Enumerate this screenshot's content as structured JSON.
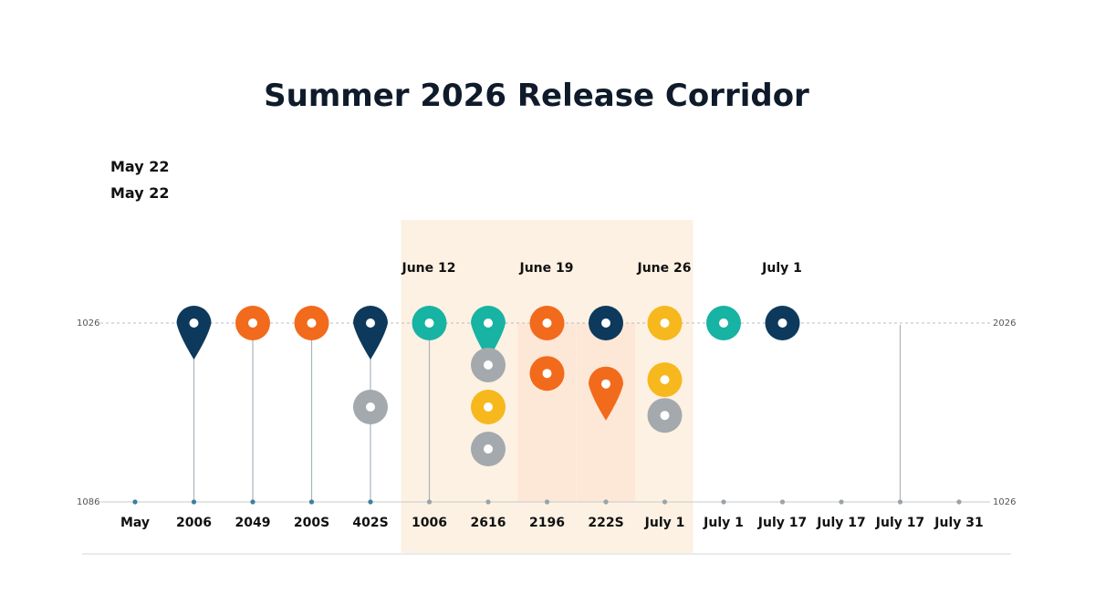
{
  "chart_data": {
    "type": "scatter",
    "title": "Summer 2026 Release Corridor",
    "notes": [
      "May 22",
      "May 22"
    ],
    "y_axis_left": {
      "top": "1026",
      "bottom": "1086"
    },
    "y_axis_right": {
      "top": "2026",
      "bottom": "1026"
    },
    "categories": [
      "May",
      "2006",
      "2049",
      "200S",
      "402S",
      "1006",
      "2616",
      "2196",
      "222S",
      "July 1",
      "July 1",
      "July 17",
      "July 17",
      "July 17",
      "July 31"
    ],
    "band_labels": [
      {
        "label": "June 12",
        "category_index": 5
      },
      {
        "label": "June 19",
        "category_index": 7
      },
      {
        "label": "June 26",
        "category_index": 9
      },
      {
        "label": "July 1",
        "category_index": 11
      }
    ],
    "highlight_range": {
      "from_index": 5,
      "to_index": 9
    },
    "colors": {
      "navy": "#0d3a5c",
      "orange": "#f26a1b",
      "teal": "#17b3a3",
      "gold": "#f6b81c",
      "gray": "#a3a9ad",
      "band": "#fdf1e3",
      "band_strong": "#fce3d2"
    },
    "stems": [
      {
        "index": 1,
        "from": 0,
        "to": 1
      },
      {
        "index": 2,
        "from": 0,
        "to": 1
      },
      {
        "index": 3,
        "from": 0,
        "to": 1
      },
      {
        "index": 4,
        "from": 0,
        "to": 1
      },
      {
        "index": 5,
        "from": 0,
        "to": 1
      },
      {
        "index": 13,
        "from": 0,
        "to": 1
      }
    ],
    "markers": [
      {
        "index": 1,
        "level": 0,
        "color": "navy",
        "shape": "pin"
      },
      {
        "index": 2,
        "level": 0,
        "color": "orange",
        "shape": "ring"
      },
      {
        "index": 3,
        "level": 0,
        "color": "orange",
        "shape": "ring"
      },
      {
        "index": 4,
        "level": 0,
        "color": "navy",
        "shape": "pin"
      },
      {
        "index": 4,
        "level": 2,
        "color": "gray",
        "shape": "ring"
      },
      {
        "index": 5,
        "level": 0,
        "color": "teal",
        "shape": "ring"
      },
      {
        "index": 6,
        "level": 0,
        "color": "teal",
        "shape": "pin"
      },
      {
        "index": 6,
        "level": 1,
        "color": "gray",
        "shape": "ring"
      },
      {
        "index": 6,
        "level": 2,
        "color": "gold",
        "shape": "ring"
      },
      {
        "index": 6,
        "level": 3,
        "color": "gray",
        "shape": "ring"
      },
      {
        "index": 7,
        "level": 0,
        "color": "orange",
        "shape": "ring"
      },
      {
        "index": 7,
        "level": 1.2,
        "color": "orange",
        "shape": "ring"
      },
      {
        "index": 8,
        "level": 0,
        "color": "navy",
        "shape": "ring"
      },
      {
        "index": 8,
        "level": 1.45,
        "color": "orange",
        "shape": "pin"
      },
      {
        "index": 9,
        "level": 0,
        "color": "gold",
        "shape": "ring"
      },
      {
        "index": 9,
        "level": 1.35,
        "color": "gold",
        "shape": "ring"
      },
      {
        "index": 9,
        "level": 2.2,
        "color": "gray",
        "shape": "ring"
      },
      {
        "index": 10,
        "level": 0,
        "color": "teal",
        "shape": "ring"
      },
      {
        "index": 11,
        "level": 0,
        "color": "navy",
        "shape": "ring"
      }
    ],
    "grid": false,
    "legend": "none"
  }
}
